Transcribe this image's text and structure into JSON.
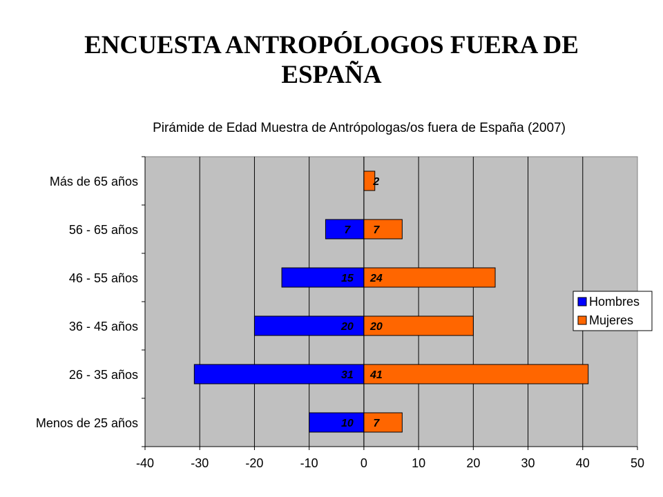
{
  "slide": {
    "title_line1": "ENCUESTA ANTROPÓLOGOS FUERA DE",
    "title_line2": "ESPAÑA"
  },
  "colors": {
    "hombres": "#0000ff",
    "mujeres": "#ff6600",
    "plot_background": "#c0c0c0",
    "gridline": "#000000"
  },
  "chart_data": {
    "type": "bar",
    "orientation": "horizontal",
    "stacking": "diverging",
    "title": "Pirámide de Edad Muestra de Antrópologas/os fuera de España (2007)",
    "categories": [
      "Menos de 25 años",
      "26 - 35 años",
      "36 - 45 años",
      "46 - 55 años",
      "56 - 65 años",
      "Más de 65 años"
    ],
    "series": [
      {
        "name": "Hombres",
        "values": [
          -10,
          -31,
          -20,
          -15,
          -7,
          0
        ],
        "labels": [
          "10",
          "31",
          "20",
          "15",
          "7",
          ""
        ]
      },
      {
        "name": "Mujeres",
        "values": [
          7,
          41,
          20,
          24,
          7,
          2
        ],
        "labels": [
          "7",
          "41",
          "20",
          "24",
          "7",
          "2"
        ]
      }
    ],
    "xlim": [
      -40,
      50
    ],
    "xticks": [
      -40,
      -30,
      -20,
      -10,
      0,
      10,
      20,
      30,
      40,
      50
    ],
    "grid": "vertical",
    "legend": "right",
    "xlabel": "",
    "ylabel": ""
  }
}
